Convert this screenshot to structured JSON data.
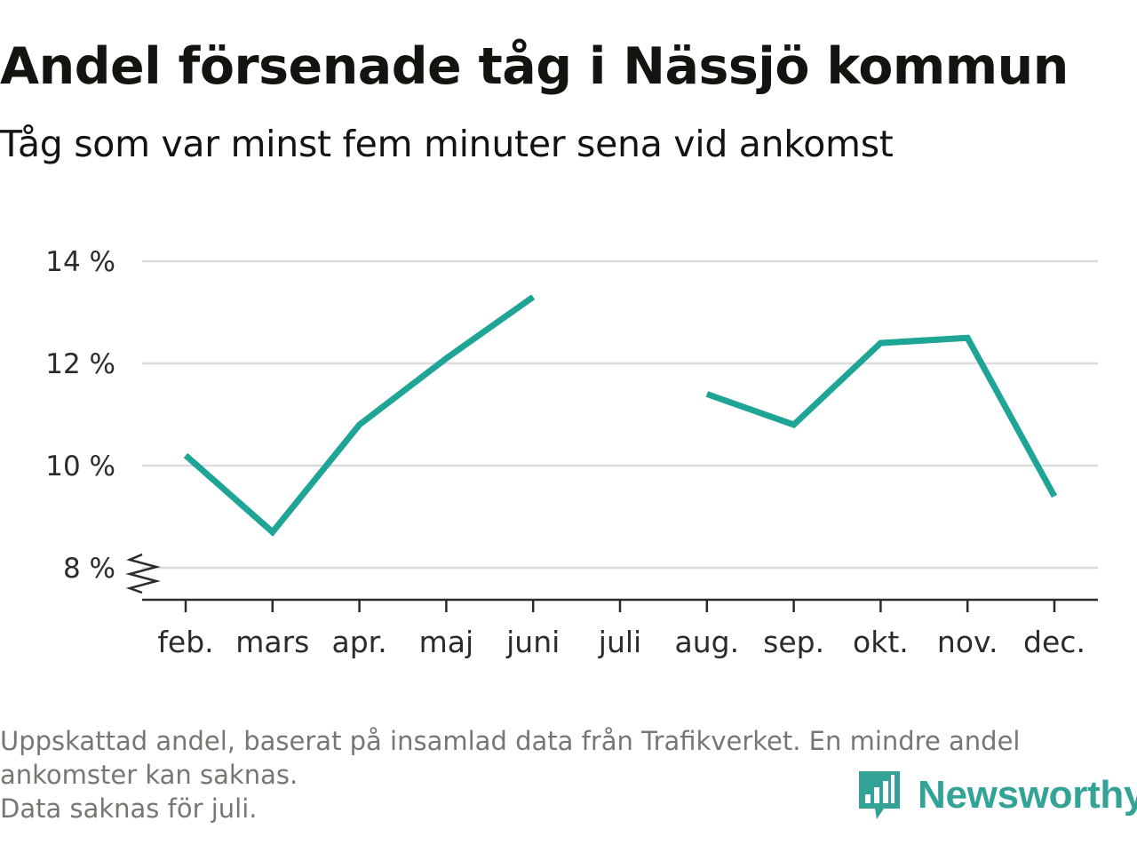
{
  "title": "Andel försenade tåg i Nässjö kommun",
  "subtitle": "Tåg som var minst fem minuter sena vid ankomst",
  "footnote": {
    "line1": "Uppskattad andel, baserat på insamlad data från Trafikverket. En mindre andel",
    "line2": "ankomster kan saknas.",
    "line3": "Data saknas för juli."
  },
  "brand": {
    "name": "Newsworthy",
    "color": "#33a398"
  },
  "colors": {
    "line": "#1fa596",
    "grid": "#dcdcdc",
    "axis": "#2b2b28"
  },
  "chart_data": {
    "type": "line",
    "title": "Andel försenade tåg i Nässjö kommun",
    "subtitle": "Tåg som var minst fem minuter sena vid ankomst",
    "xlabel": "",
    "ylabel": "",
    "categories": [
      "feb.",
      "mars",
      "apr.",
      "maj",
      "juni",
      "juli",
      "aug.",
      "sep.",
      "okt.",
      "nov.",
      "dec."
    ],
    "series": [
      {
        "values": [
          10.2,
          8.7,
          10.8,
          12.1,
          13.3,
          null,
          11.4,
          10.8,
          12.4,
          12.5,
          9.4
        ]
      }
    ],
    "yticks": [
      8,
      10,
      12,
      14
    ],
    "ytick_labels": [
      "8 %",
      "10 %",
      "12 %",
      "14 %"
    ],
    "ylim": [
      7.4,
      14.3
    ],
    "y_axis_break": true,
    "grid": true,
    "legend": "none"
  }
}
